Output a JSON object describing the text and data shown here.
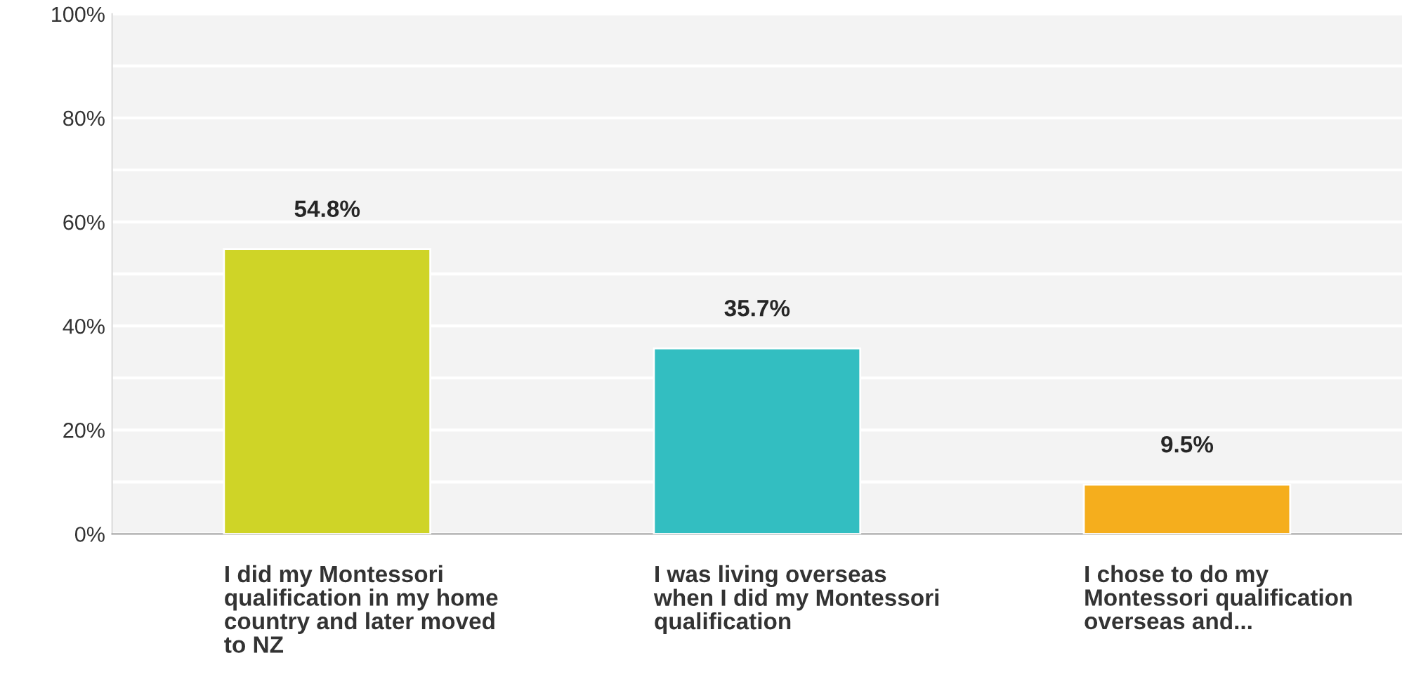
{
  "chart_data": {
    "type": "bar",
    "categories": [
      "I did my Montessori qualification in my home country and later moved to NZ",
      "I was living overseas when I did my Montessori qualification",
      "I chose to do my Montessori qualification overseas and..."
    ],
    "values": [
      54.8,
      35.7,
      9.5
    ],
    "colors": [
      "#cfd427",
      "#33bec1",
      "#f5ae1d"
    ],
    "value_labels": [
      "54.8%",
      "35.7%",
      "9.5%"
    ],
    "ylim": [
      0,
      100
    ],
    "yticks": [
      {
        "value": 0,
        "label": "0%"
      },
      {
        "value": 10,
        "label": null
      },
      {
        "value": 20,
        "label": "20%"
      },
      {
        "value": 30,
        "label": null
      },
      {
        "value": 40,
        "label": "40%"
      },
      {
        "value": 50,
        "label": null
      },
      {
        "value": 60,
        "label": "60%"
      },
      {
        "value": 70,
        "label": null
      },
      {
        "value": 80,
        "label": "80%"
      },
      {
        "value": 90,
        "label": null
      },
      {
        "value": 100,
        "label": "100%"
      }
    ],
    "grid": "y"
  }
}
